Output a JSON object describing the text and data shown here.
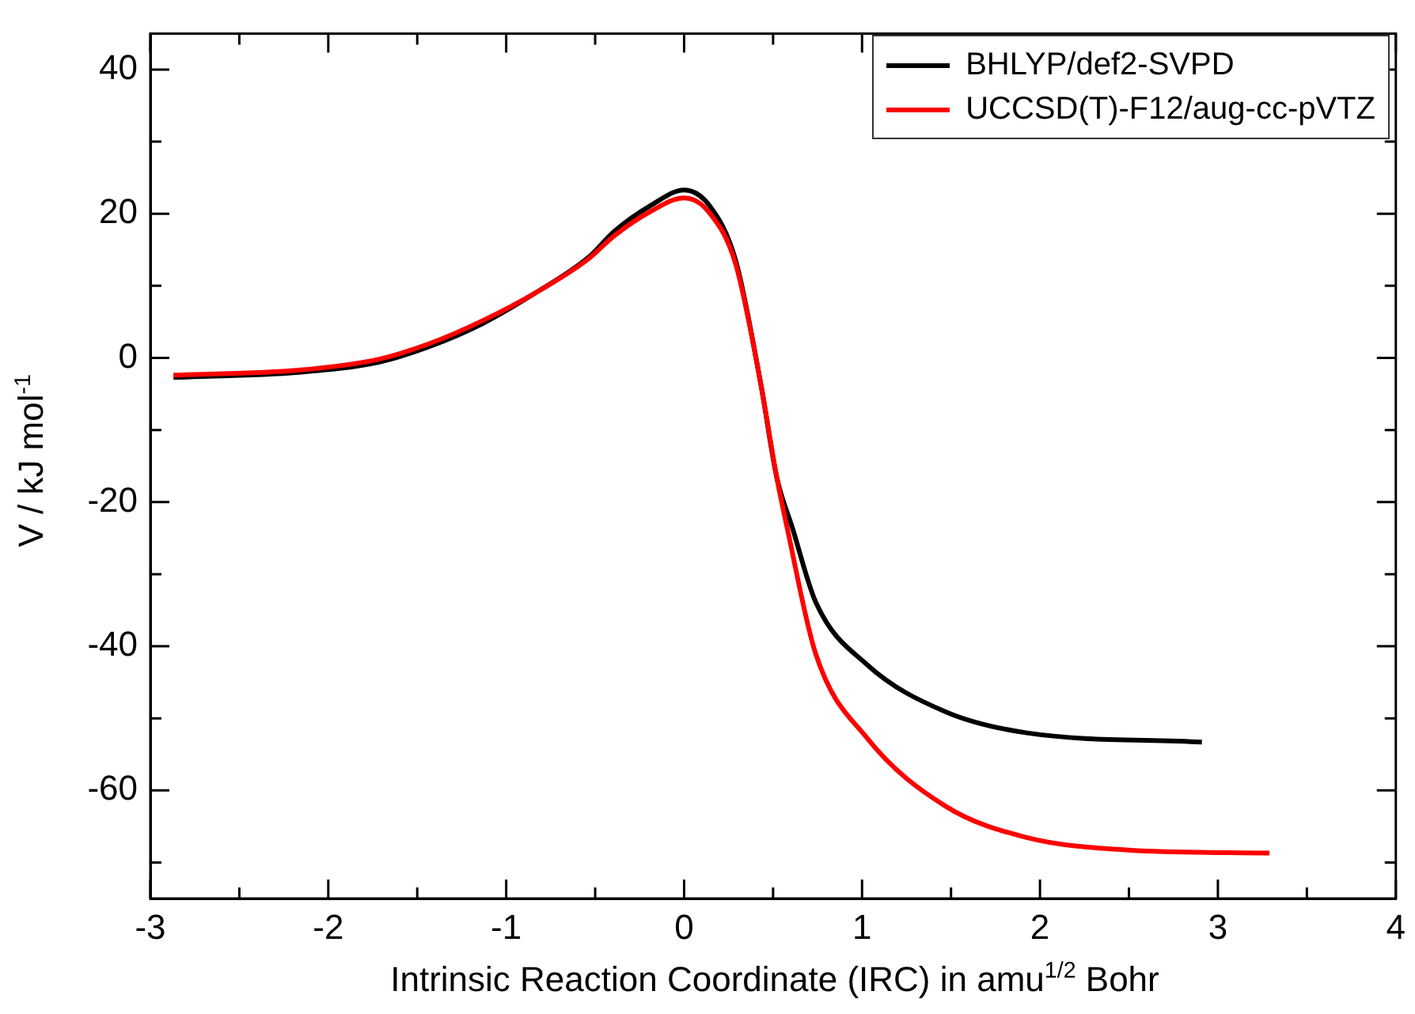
{
  "chart_data": {
    "type": "line",
    "xlabel": "Intrinsic Reaction Coordinate (IRC) in amu$^{1/2}$ Bohr",
    "ylabel": "V / kJ mol$^{-1}$",
    "xlim": [
      -3,
      4
    ],
    "ylim": [
      -75,
      45
    ],
    "xticks": [
      -3,
      {
        "value": -2.5,
        "label": null
      },
      -2,
      {
        "value": -1.5,
        "label": null
      },
      -1,
      {
        "value": -0.5,
        "label": null
      },
      0,
      {
        "value": 0.5,
        "label": null
      },
      1,
      {
        "value": 1.5,
        "label": null
      },
      2,
      {
        "value": 2.5,
        "label": null
      },
      3,
      {
        "value": 3.5,
        "label": null
      },
      4
    ],
    "yticks": [
      {
        "value": -70,
        "label": null
      },
      -60,
      {
        "value": -50,
        "label": null
      },
      -40,
      {
        "value": -30,
        "label": null
      },
      -20,
      {
        "value": -10,
        "label": null
      },
      0,
      {
        "value": 10,
        "label": null
      },
      20,
      {
        "value": 30,
        "label": null
      },
      40
    ],
    "legend": "top right",
    "grid": false,
    "marker": "none",
    "line_style": "solid",
    "series": [
      {
        "name": "BHLYP/def2-SVPD",
        "color": "#000000",
        "x": [
          -2.87,
          -2.17,
          -1.72,
          -1.43,
          -1.13,
          -0.83,
          -0.54,
          -0.39,
          -0.19,
          0,
          0.14,
          0.29,
          0.43,
          0.52,
          0.61,
          0.74,
          1.03,
          1.47,
          1.92,
          2.91
        ],
        "values": [
          -2.7,
          -2.0,
          -0.6,
          1.6,
          4.8,
          9.1,
          13.9,
          17.6,
          21.1,
          23.3,
          21.2,
          13.5,
          -3.5,
          -16.5,
          -23.7,
          -33.9,
          -42.6,
          -49.1,
          -52.0,
          -53.3
        ]
      },
      {
        "name": "UCCSD(T)-F12/aug-cc-pVTZ",
        "color": "#ff0000",
        "x": [
          -2.87,
          -2.17,
          -1.72,
          -1.43,
          -1.13,
          -0.83,
          -0.54,
          -0.39,
          -0.19,
          0,
          0.14,
          0.29,
          0.43,
          0.52,
          0.58,
          0.74,
          1.03,
          1.47,
          1.92,
          2.51,
          3.29
        ],
        "values": [
          -2.4,
          -1.7,
          -0.2,
          2.0,
          5.2,
          9.1,
          13.7,
          17.0,
          20.3,
          22.2,
          20.2,
          13.0,
          -3.5,
          -16.5,
          -23.7,
          -41.1,
          -52.8,
          -62.2,
          -66.5,
          -68.3,
          -68.7
        ]
      }
    ]
  }
}
